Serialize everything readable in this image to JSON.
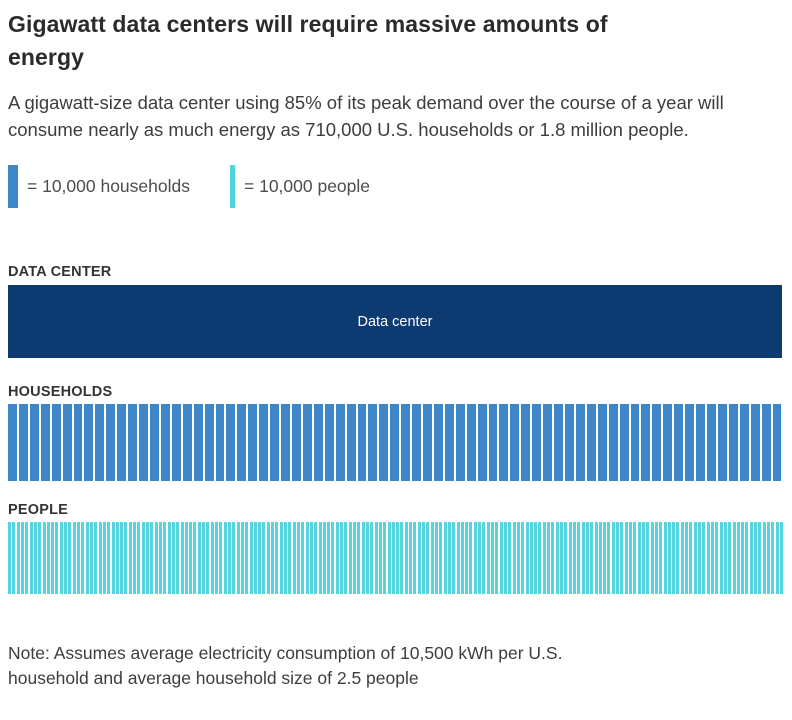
{
  "title": "Gigawatt data centers will require massive amounts of energy",
  "subtitle": "A gigawatt-size data center using 85% of its peak demand over the course of a year will consume nearly as much energy as 710,000 U.S. households or 1.8 million people.",
  "legend": [
    {
      "label": "= 10,000 households",
      "color": "#3d87c8"
    },
    {
      "label": "= 10,000 people",
      "color": "#4fd4de"
    }
  ],
  "note": "Note: Assumes average electricity consumption of 10,500 kWh per U.S. household and average household size of 2.5 people",
  "chart_data": {
    "type": "bar",
    "title": "Gigawatt data centers will require massive amounts of energy",
    "subtitle": "A gigawatt-size data center using 85% of its peak demand over the course of a year will consume nearly as much energy as 710,000 U.S. households or 1.8 million people.",
    "unit_per_bar": 10000,
    "legend": [
      "= 10,000 households",
      "= 10,000 people"
    ],
    "legend_position": "top",
    "grid": false,
    "sections": [
      {
        "label": "DATA CENTER",
        "bar_label": "Data center",
        "style": "solid-block",
        "color": "#0d3a70",
        "equivalent_households": 710000,
        "equivalent_people": 1800000
      },
      {
        "label": "HOUSEHOLDS",
        "value": 710000,
        "bar_count": 71,
        "color": "#3d87c8"
      },
      {
        "label": "PEOPLE",
        "value": 1800000,
        "bar_count": 180,
        "color": "#55d6df"
      }
    ]
  }
}
